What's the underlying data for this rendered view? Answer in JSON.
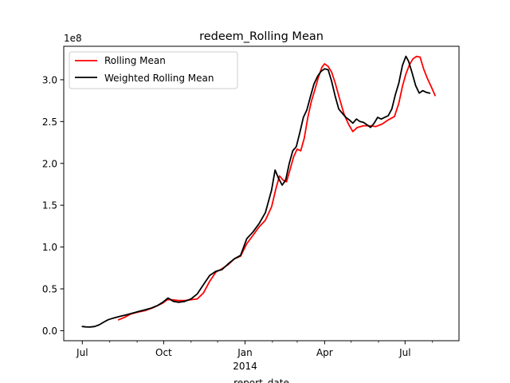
{
  "chart_data": {
    "type": "line",
    "title": "redeem_Rolling Mean",
    "xlabel": "report_date",
    "ylabel": "",
    "y_offset_label": "1e8",
    "ylim": [
      -0.12,
      3.4
    ],
    "xlim": [
      "2013-06-10",
      "2014-08-31"
    ],
    "x_ticks": [
      {
        "date": "2013-07-01",
        "label": "Jul"
      },
      {
        "date": "2013-10-01",
        "label": "Oct"
      },
      {
        "date": "2014-01-01",
        "label": "Jan",
        "sublabel": "2014"
      },
      {
        "date": "2014-04-01",
        "label": "Apr"
      },
      {
        "date": "2014-07-01",
        "label": "Jul"
      }
    ],
    "x_minor_ticks": [
      "2013-08-01",
      "2013-09-01",
      "2013-11-01",
      "2013-12-01",
      "2014-02-01",
      "2014-03-01",
      "2014-05-01",
      "2014-06-01",
      "2014-08-01"
    ],
    "y_ticks": [
      0.0,
      0.5,
      1.0,
      1.5,
      2.0,
      2.5,
      3.0
    ],
    "y_tick_labels": [
      "0.0",
      "0.5",
      "1.0",
      "1.5",
      "2.0",
      "2.5",
      "3.0"
    ],
    "legend_position": "upper-left",
    "grid": false,
    "series": [
      {
        "name": "Rolling Mean",
        "color": "#ff0000",
        "points": [
          [
            "2013-08-11",
            0.13
          ],
          [
            "2013-08-18",
            0.16
          ],
          [
            "2013-08-25",
            0.2
          ],
          [
            "2013-09-01",
            0.22
          ],
          [
            "2013-09-10",
            0.24
          ],
          [
            "2013-09-20",
            0.28
          ],
          [
            "2013-09-30",
            0.33
          ],
          [
            "2013-10-05",
            0.37
          ],
          [
            "2013-10-10",
            0.37
          ],
          [
            "2013-10-18",
            0.36
          ],
          [
            "2013-10-25",
            0.36
          ],
          [
            "2013-11-01",
            0.37
          ],
          [
            "2013-11-08",
            0.38
          ],
          [
            "2013-11-15",
            0.45
          ],
          [
            "2013-11-22",
            0.59
          ],
          [
            "2013-11-29",
            0.7
          ],
          [
            "2013-12-06",
            0.74
          ],
          [
            "2013-12-13",
            0.79
          ],
          [
            "2013-12-20",
            0.86
          ],
          [
            "2013-12-27",
            0.89
          ],
          [
            "2014-01-03",
            1.04
          ],
          [
            "2014-01-10",
            1.14
          ],
          [
            "2014-01-17",
            1.24
          ],
          [
            "2014-01-24",
            1.32
          ],
          [
            "2014-01-31",
            1.48
          ],
          [
            "2014-02-05",
            1.7
          ],
          [
            "2014-02-09",
            1.85
          ],
          [
            "2014-02-13",
            1.8
          ],
          [
            "2014-02-17",
            1.78
          ],
          [
            "2014-02-21",
            1.93
          ],
          [
            "2014-02-25",
            2.08
          ],
          [
            "2014-03-01",
            2.17
          ],
          [
            "2014-03-05",
            2.15
          ],
          [
            "2014-03-09",
            2.3
          ],
          [
            "2014-03-13",
            2.55
          ],
          [
            "2014-03-17",
            2.74
          ],
          [
            "2014-03-21",
            2.88
          ],
          [
            "2014-03-25",
            3.03
          ],
          [
            "2014-03-29",
            3.15
          ],
          [
            "2014-04-01",
            3.19
          ],
          [
            "2014-04-05",
            3.16
          ],
          [
            "2014-04-09",
            3.09
          ],
          [
            "2014-04-13",
            2.96
          ],
          [
            "2014-04-18",
            2.77
          ],
          [
            "2014-04-23",
            2.59
          ],
          [
            "2014-04-28",
            2.47
          ],
          [
            "2014-05-03",
            2.38
          ],
          [
            "2014-05-08",
            2.43
          ],
          [
            "2014-05-15",
            2.45
          ],
          [
            "2014-05-22",
            2.45
          ],
          [
            "2014-05-29",
            2.44
          ],
          [
            "2014-06-05",
            2.47
          ],
          [
            "2014-06-12",
            2.52
          ],
          [
            "2014-06-19",
            2.56
          ],
          [
            "2014-06-24",
            2.72
          ],
          [
            "2014-06-28",
            2.92
          ],
          [
            "2014-07-02",
            3.07
          ],
          [
            "2014-07-06",
            3.18
          ],
          [
            "2014-07-10",
            3.25
          ],
          [
            "2014-07-14",
            3.28
          ],
          [
            "2014-07-18",
            3.27
          ],
          [
            "2014-07-22",
            3.13
          ],
          [
            "2014-07-26",
            3.02
          ],
          [
            "2014-07-30",
            2.93
          ],
          [
            "2014-08-02",
            2.86
          ],
          [
            "2014-08-04",
            2.81
          ]
        ]
      },
      {
        "name": "Weighted Rolling Mean",
        "color": "#000000",
        "points": [
          [
            "2013-07-01",
            0.05
          ],
          [
            "2013-07-05",
            0.045
          ],
          [
            "2013-07-10",
            0.044
          ],
          [
            "2013-07-15",
            0.05
          ],
          [
            "2013-07-20",
            0.07
          ],
          [
            "2013-07-25",
            0.1
          ],
          [
            "2013-07-30",
            0.13
          ],
          [
            "2013-08-05",
            0.15
          ],
          [
            "2013-08-12",
            0.17
          ],
          [
            "2013-08-20",
            0.19
          ],
          [
            "2013-08-27",
            0.21
          ],
          [
            "2013-09-03",
            0.23
          ],
          [
            "2013-09-10",
            0.25
          ],
          [
            "2013-09-17",
            0.27
          ],
          [
            "2013-09-24",
            0.3
          ],
          [
            "2013-09-30",
            0.34
          ],
          [
            "2013-10-06",
            0.39
          ],
          [
            "2013-10-12",
            0.35
          ],
          [
            "2013-10-18",
            0.34
          ],
          [
            "2013-10-25",
            0.35
          ],
          [
            "2013-11-01",
            0.38
          ],
          [
            "2013-11-08",
            0.44
          ],
          [
            "2013-11-15",
            0.55
          ],
          [
            "2013-11-22",
            0.66
          ],
          [
            "2013-11-29",
            0.71
          ],
          [
            "2013-12-06",
            0.73
          ],
          [
            "2013-12-13",
            0.8
          ],
          [
            "2013-12-20",
            0.86
          ],
          [
            "2013-12-27",
            0.9
          ],
          [
            "2014-01-03",
            1.1
          ],
          [
            "2014-01-10",
            1.18
          ],
          [
            "2014-01-17",
            1.28
          ],
          [
            "2014-01-24",
            1.41
          ],
          [
            "2014-01-31",
            1.68
          ],
          [
            "2014-02-04",
            1.92
          ],
          [
            "2014-02-08",
            1.82
          ],
          [
            "2014-02-12",
            1.74
          ],
          [
            "2014-02-16",
            1.8
          ],
          [
            "2014-02-20",
            2.0
          ],
          [
            "2014-02-24",
            2.15
          ],
          [
            "2014-02-28",
            2.2
          ],
          [
            "2014-03-04",
            2.37
          ],
          [
            "2014-03-08",
            2.55
          ],
          [
            "2014-03-12",
            2.64
          ],
          [
            "2014-03-16",
            2.8
          ],
          [
            "2014-03-20",
            2.95
          ],
          [
            "2014-03-24",
            3.04
          ],
          [
            "2014-03-28",
            3.1
          ],
          [
            "2014-04-01",
            3.13
          ],
          [
            "2014-04-05",
            3.12
          ],
          [
            "2014-04-09",
            2.98
          ],
          [
            "2014-04-13",
            2.8
          ],
          [
            "2014-04-17",
            2.65
          ],
          [
            "2014-04-21",
            2.6
          ],
          [
            "2014-04-25",
            2.55
          ],
          [
            "2014-04-29",
            2.52
          ],
          [
            "2014-05-03",
            2.48
          ],
          [
            "2014-05-07",
            2.53
          ],
          [
            "2014-05-11",
            2.5
          ],
          [
            "2014-05-15",
            2.49
          ],
          [
            "2014-05-19",
            2.46
          ],
          [
            "2014-05-23",
            2.43
          ],
          [
            "2014-05-27",
            2.48
          ],
          [
            "2014-05-31",
            2.55
          ],
          [
            "2014-06-04",
            2.53
          ],
          [
            "2014-06-08",
            2.55
          ],
          [
            "2014-06-12",
            2.57
          ],
          [
            "2014-06-16",
            2.65
          ],
          [
            "2014-06-20",
            2.82
          ],
          [
            "2014-06-24",
            2.96
          ],
          [
            "2014-06-28",
            3.17
          ],
          [
            "2014-07-02",
            3.28
          ],
          [
            "2014-07-05",
            3.22
          ],
          [
            "2014-07-09",
            3.08
          ],
          [
            "2014-07-13",
            2.93
          ],
          [
            "2014-07-17",
            2.84
          ],
          [
            "2014-07-21",
            2.87
          ],
          [
            "2014-07-25",
            2.85
          ],
          [
            "2014-07-29",
            2.84
          ]
        ]
      }
    ]
  }
}
